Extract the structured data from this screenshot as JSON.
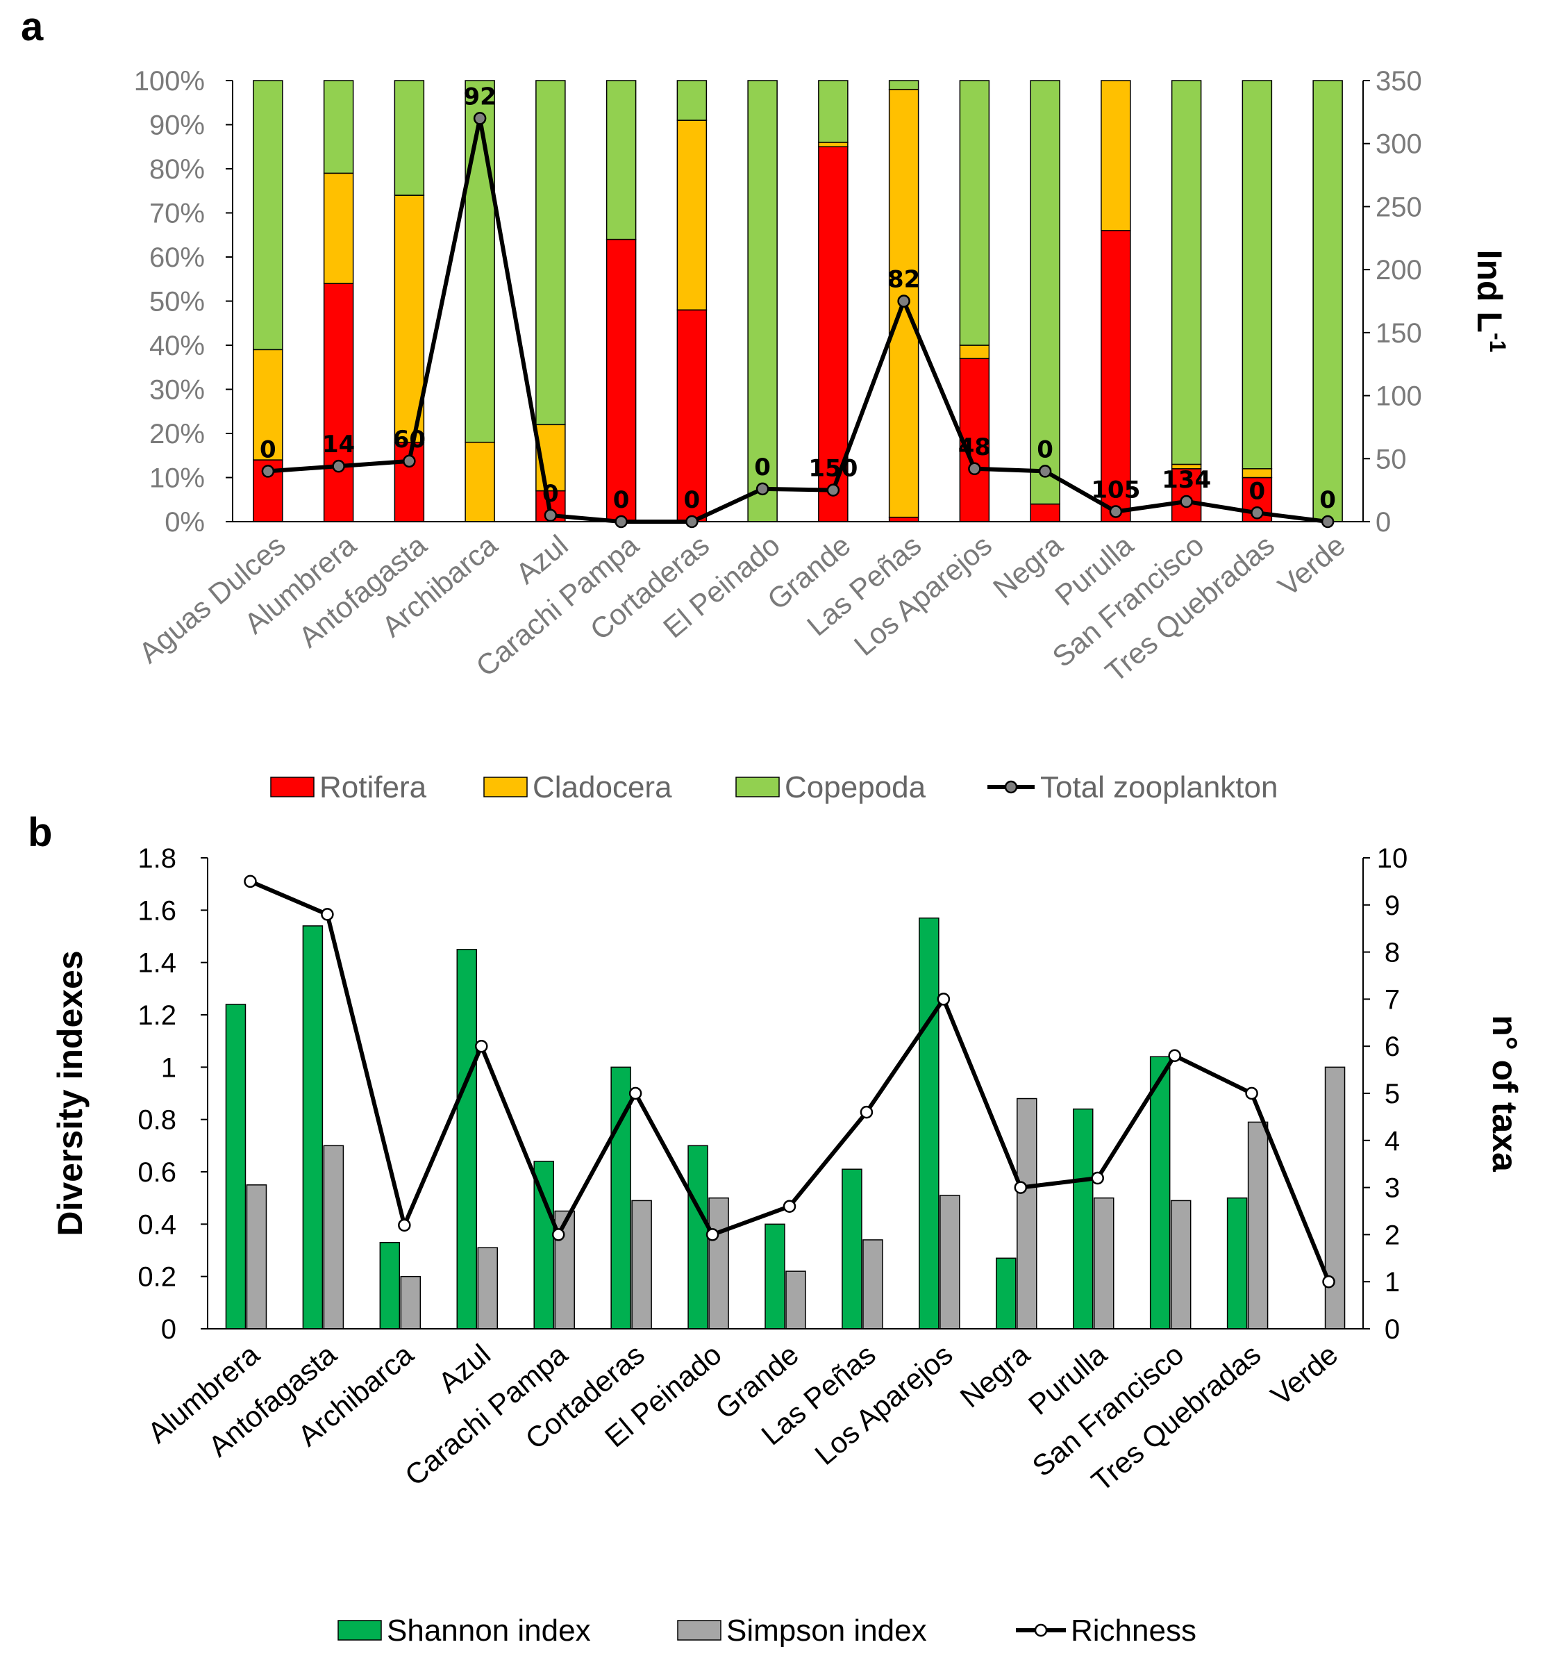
{
  "chart_data": [
    {
      "panel": "a",
      "type": "bar",
      "stacked": true,
      "categories": [
        "Aguas Dulces",
        "Alumbrera",
        "Antofagasta",
        "Archibarca",
        "Azul",
        "Carachi Pampa",
        "Cortaderas",
        "El Peinado",
        "Grande",
        "Las Peñas",
        "Los Aparejos",
        "Negra",
        "Purulla",
        "San Francisco",
        "Tres Quebradas",
        "Verde"
      ],
      "series": [
        {
          "name": "Rotifera",
          "color": "#ff0000",
          "values": [
            14,
            54,
            18,
            0,
            7,
            64,
            48,
            0,
            85,
            1,
            37,
            4,
            66,
            12,
            10,
            0
          ]
        },
        {
          "name": "Cladocera",
          "color": "#ffc000",
          "values": [
            25,
            25,
            56,
            18,
            15,
            0,
            43,
            0,
            1,
            97,
            3,
            0,
            34,
            1,
            2,
            0
          ]
        },
        {
          "name": "Copepoda",
          "color": "#92d050",
          "values": [
            61,
            21,
            26,
            82,
            78,
            36,
            9,
            100,
            14,
            2,
            60,
            96,
            0,
            87,
            88,
            100
          ]
        }
      ],
      "line_series": {
        "name": "Total zooplankton",
        "color": "#000000",
        "values": [
          40,
          44,
          48,
          320,
          5,
          0,
          0,
          26,
          25,
          175,
          42,
          40,
          8,
          16,
          7,
          0
        ]
      },
      "data_labels": [
        "0",
        "14",
        "60",
        "92",
        "0",
        "0",
        "0",
        "0",
        "150",
        "82",
        "48",
        "0",
        "105",
        "134",
        "0",
        "0"
      ],
      "y_left": {
        "ticks": [
          "0%",
          "10%",
          "20%",
          "30%",
          "40%",
          "50%",
          "60%",
          "70%",
          "80%",
          "90%",
          "100%"
        ],
        "ylim": [
          0,
          100
        ]
      },
      "y_right": {
        "label_main": "Ind L",
        "label_sup": "-1",
        "ticks": [
          "0",
          "50",
          "100",
          "150",
          "200",
          "250",
          "300",
          "350"
        ],
        "ylim": [
          0,
          350
        ]
      },
      "legend": [
        "Rotifera",
        "Cladocera",
        "Copepoda",
        "Total zooplankton"
      ],
      "legend_position": "bottom"
    },
    {
      "panel": "b",
      "type": "bar",
      "categories": [
        "Alumbrera",
        "Antofagasta",
        "Archibarca",
        "Azul",
        "Carachi Pampa",
        "Cortaderas",
        "El Peinado",
        "Grande",
        "Las Peñas",
        "Los Aparejos",
        "Negra",
        "Purulla",
        "San Francisco",
        "Tres Quebradas",
        "Verde"
      ],
      "series": [
        {
          "name": "Shannon index",
          "color": "#00b050",
          "values": [
            1.24,
            1.54,
            0.33,
            1.45,
            0.64,
            1.0,
            0.7,
            0.4,
            0.61,
            1.57,
            0.27,
            0.84,
            1.04,
            0.5,
            0
          ]
        },
        {
          "name": "Simpson index",
          "color": "#a6a6a6",
          "values": [
            0.55,
            0.7,
            0.2,
            0.31,
            0.45,
            0.49,
            0.5,
            0.22,
            0.34,
            0.51,
            0.88,
            0.5,
            0.49,
            0.79,
            1.0
          ]
        }
      ],
      "line_series": {
        "name": "Richness",
        "color": "#000000",
        "values": [
          9.5,
          8.8,
          2.2,
          6,
          2,
          5,
          2,
          2.6,
          4.6,
          7,
          3,
          3.2,
          5.8,
          5,
          1
        ]
      },
      "y_left": {
        "label": "Diversity indexes",
        "ticks": [
          "0",
          "0.2",
          "0.4",
          "0.6",
          "0.8",
          "1",
          "1.2",
          "1.4",
          "1.6",
          "1.8"
        ],
        "ylim": [
          0,
          1.8
        ]
      },
      "y_right": {
        "label": "n° of taxa",
        "ticks": [
          "0",
          "1",
          "2",
          "3",
          "4",
          "5",
          "6",
          "7",
          "8",
          "9",
          "10"
        ],
        "ylim": [
          0,
          10
        ]
      },
      "legend": [
        "Shannon index",
        "Simpson index",
        "Richness"
      ],
      "legend_position": "bottom"
    }
  ],
  "panel_labels": {
    "a": "a",
    "b": "b"
  }
}
